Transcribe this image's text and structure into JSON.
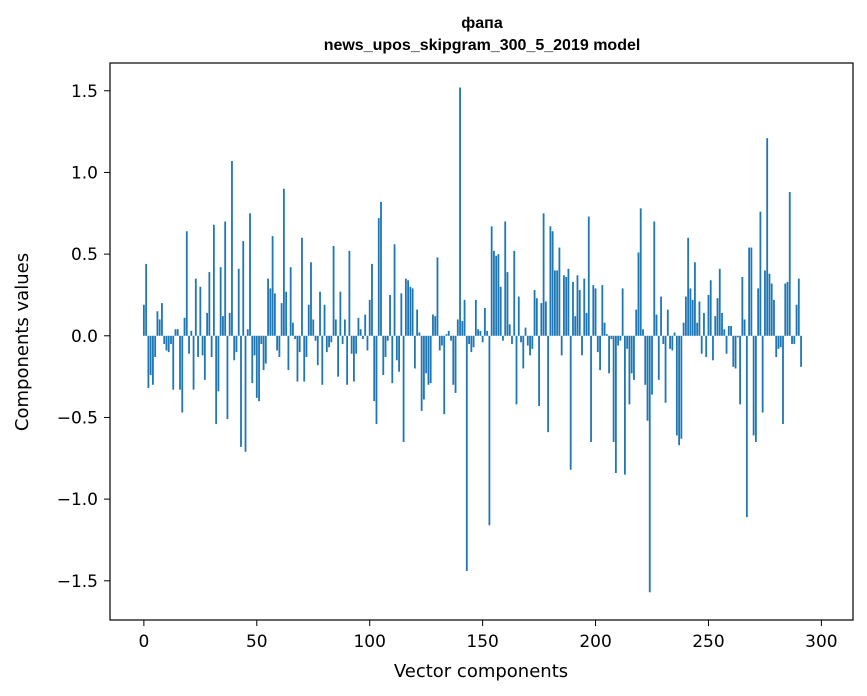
{
  "chart_data": {
    "type": "bar",
    "title_line1": "фапа",
    "title_line2": "news_upos_skipgram_300_5_2019 model",
    "xlabel": "Vector components",
    "ylabel": "Components values",
    "xlim": [
      -15,
      314
    ],
    "ylim": [
      -1.74,
      1.67
    ],
    "x_ticks": [
      0,
      50,
      100,
      150,
      200,
      250,
      300
    ],
    "x_tick_labels": [
      "0",
      "50",
      "100",
      "150",
      "200",
      "250",
      "300"
    ],
    "y_ticks": [
      1.5,
      1.0,
      0.5,
      0.0,
      -0.5,
      -1.0,
      -1.5
    ],
    "y_tick_labels": [
      "1.5",
      "1.0",
      "0.5",
      "0.0",
      "−0.5",
      "−1.0",
      "−1.5"
    ],
    "bar_color": "#1f77b4",
    "values": [
      0.19,
      0.44,
      -0.32,
      -0.24,
      -0.3,
      -0.13,
      0.15,
      0.1,
      0.2,
      -0.05,
      -0.09,
      -0.1,
      -0.05,
      -0.33,
      0.04,
      0.04,
      -0.33,
      -0.47,
      0.11,
      0.64,
      -0.11,
      0.03,
      -0.33,
      0.35,
      -0.13,
      0.3,
      -0.12,
      -0.27,
      0.14,
      0.39,
      -0.13,
      0.68,
      -0.54,
      -0.34,
      0.42,
      0.12,
      0.7,
      -0.51,
      0.14,
      1.07,
      -0.15,
      -0.1,
      0.41,
      -0.68,
      0.58,
      -0.71,
      0.04,
      0.75,
      -0.29,
      -0.12,
      -0.38,
      -0.4,
      -0.05,
      -0.21,
      -0.17,
      0.35,
      0.29,
      0.61,
      0.26,
      -0.09,
      -0.13,
      0.2,
      0.9,
      0.27,
      -0.21,
      0.42,
      0.08,
      -0.02,
      -0.28,
      -0.1,
      0.6,
      -0.28,
      -0.13,
      0.19,
      0.45,
      0.1,
      -0.03,
      -0.18,
      0.27,
      -0.3,
      0.19,
      -0.1,
      -0.07,
      -0.04,
      0.55,
      0.1,
      -0.25,
      0.27,
      -0.05,
      0.1,
      -0.3,
      0.52,
      -0.11,
      -0.28,
      -0.11,
      0.11,
      0.04,
      -0.02,
      0.13,
      -0.09,
      0.22,
      0.44,
      -0.4,
      -0.54,
      0.72,
      0.82,
      -0.24,
      -0.13,
      -0.03,
      0.25,
      -0.29,
      0.56,
      -0.15,
      -0.22,
      0.26,
      -0.65,
      0.35,
      0.34,
      0.3,
      0.29,
      -0.2,
      0.16,
      0.02,
      -0.46,
      -0.39,
      -0.23,
      -0.3,
      -0.29,
      0.13,
      0.12,
      0.48,
      -0.09,
      -0.06,
      -0.48,
      0.01,
      0.03,
      -0.03,
      -0.3,
      -0.35,
      0.1,
      1.52,
      0.09,
      0.22,
      -1.44,
      -0.05,
      -0.1,
      -0.07,
      0.22,
      0.04,
      0.03,
      -0.04,
      0.17,
      0.03,
      -1.16,
      0.67,
      0.52,
      0.49,
      0.5,
      0.3,
      -0.03,
      0.7,
      0.39,
      0.07,
      -0.05,
      0.52,
      -0.42,
      0.24,
      -0.04,
      -0.2,
      0.05,
      -0.06,
      -0.12,
      -0.08,
      0.28,
      0.23,
      -0.43,
      0.2,
      0.75,
      0.21,
      -0.59,
      0.67,
      0.64,
      0.4,
      0.4,
      0.54,
      -0.12,
      0.37,
      0.36,
      0.41,
      -0.82,
      0.33,
      0.12,
      0.37,
      0.28,
      -0.12,
      0.35,
      0.14,
      0.73,
      -0.65,
      0.31,
      0.29,
      -0.1,
      -0.21,
      0.31,
      0.08,
      0.01,
      -0.23,
      -0.02,
      -0.65,
      -0.84,
      -0.06,
      -0.03,
      0.29,
      -0.85,
      -0.08,
      -0.42,
      -0.23,
      -0.27,
      0.16,
      0.51,
      0.78,
      0.04,
      -0.3,
      -0.52,
      -1.57,
      -0.36,
      0.7,
      0.13,
      -0.27,
      0.24,
      -0.05,
      -0.41,
      0.16,
      -0.08,
      -0.09,
      0.02,
      -0.61,
      -0.67,
      -0.63,
      0.08,
      0.24,
      0.6,
      0.29,
      0.22,
      0.45,
      0.08,
      0.21,
      -0.11,
      0.14,
      -0.13,
      0.25,
      0.34,
      -0.15,
      0.12,
      0.23,
      0.41,
      0.14,
      0.04,
      -0.11,
      0.06,
      0.06,
      -0.19,
      -0.2,
      -0.01,
      -0.42,
      0.36,
      0.1,
      -1.11,
      0.54,
      0.54,
      -0.61,
      -0.65,
      0.29,
      0.76,
      -0.47,
      0.4,
      1.21,
      0.38,
      0.32,
      0.22,
      -0.13,
      -0.08,
      -0.07,
      -0.54,
      0.32,
      0.33,
      0.88,
      -0.05,
      -0.05,
      0.19,
      0.35,
      -0.19
    ]
  }
}
